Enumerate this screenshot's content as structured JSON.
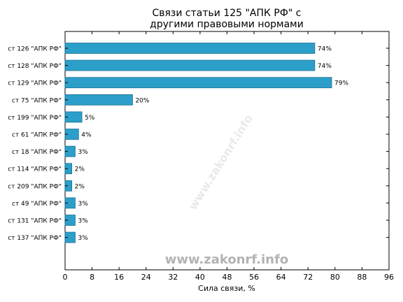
{
  "title_line1": "Связи статьи 125 \"АПК РФ\" с",
  "title_line2": "другими правовыми нормами",
  "watermark": "www.zakonrf.info",
  "colors": {
    "bar": "#2b9fc9",
    "bar_edge": "#1f6f8f"
  },
  "chart_data": {
    "type": "bar",
    "orientation": "horizontal",
    "title": "Связи статьи 125 \"АПК РФ\" с другими правовыми нормами",
    "xlabel": "Сила связи, %",
    "ylabel": "",
    "xlim": [
      0,
      96
    ],
    "xticks": [
      0,
      8,
      16,
      24,
      32,
      40,
      48,
      56,
      64,
      72,
      80,
      88,
      96
    ],
    "grid": false,
    "categories": [
      "ст 126 \"АПК РФ\"",
      "ст 128 \"АПК РФ\"",
      "ст 129 \"АПК РФ\"",
      "ст 75 \"АПК РФ\"",
      "ст 199 \"АПК РФ\"",
      "ст 61 \"АПК РФ\"",
      "ст 18 \"АПК РФ\"",
      "ст 114 \"АПК РФ\"",
      "ст 209 \"АПК РФ\"",
      "ст 49 \"АПК РФ\"",
      "ст 131 \"АПК РФ\"",
      "ст 137 \"АПК РФ\""
    ],
    "values": [
      74,
      74,
      79,
      20,
      5,
      4,
      3,
      2,
      2,
      3,
      3,
      3
    ],
    "value_labels": [
      "74%",
      "74%",
      "79%",
      "20%",
      "5%",
      "4%",
      "3%",
      "2%",
      "2%",
      "3%",
      "3%",
      "3%"
    ]
  }
}
